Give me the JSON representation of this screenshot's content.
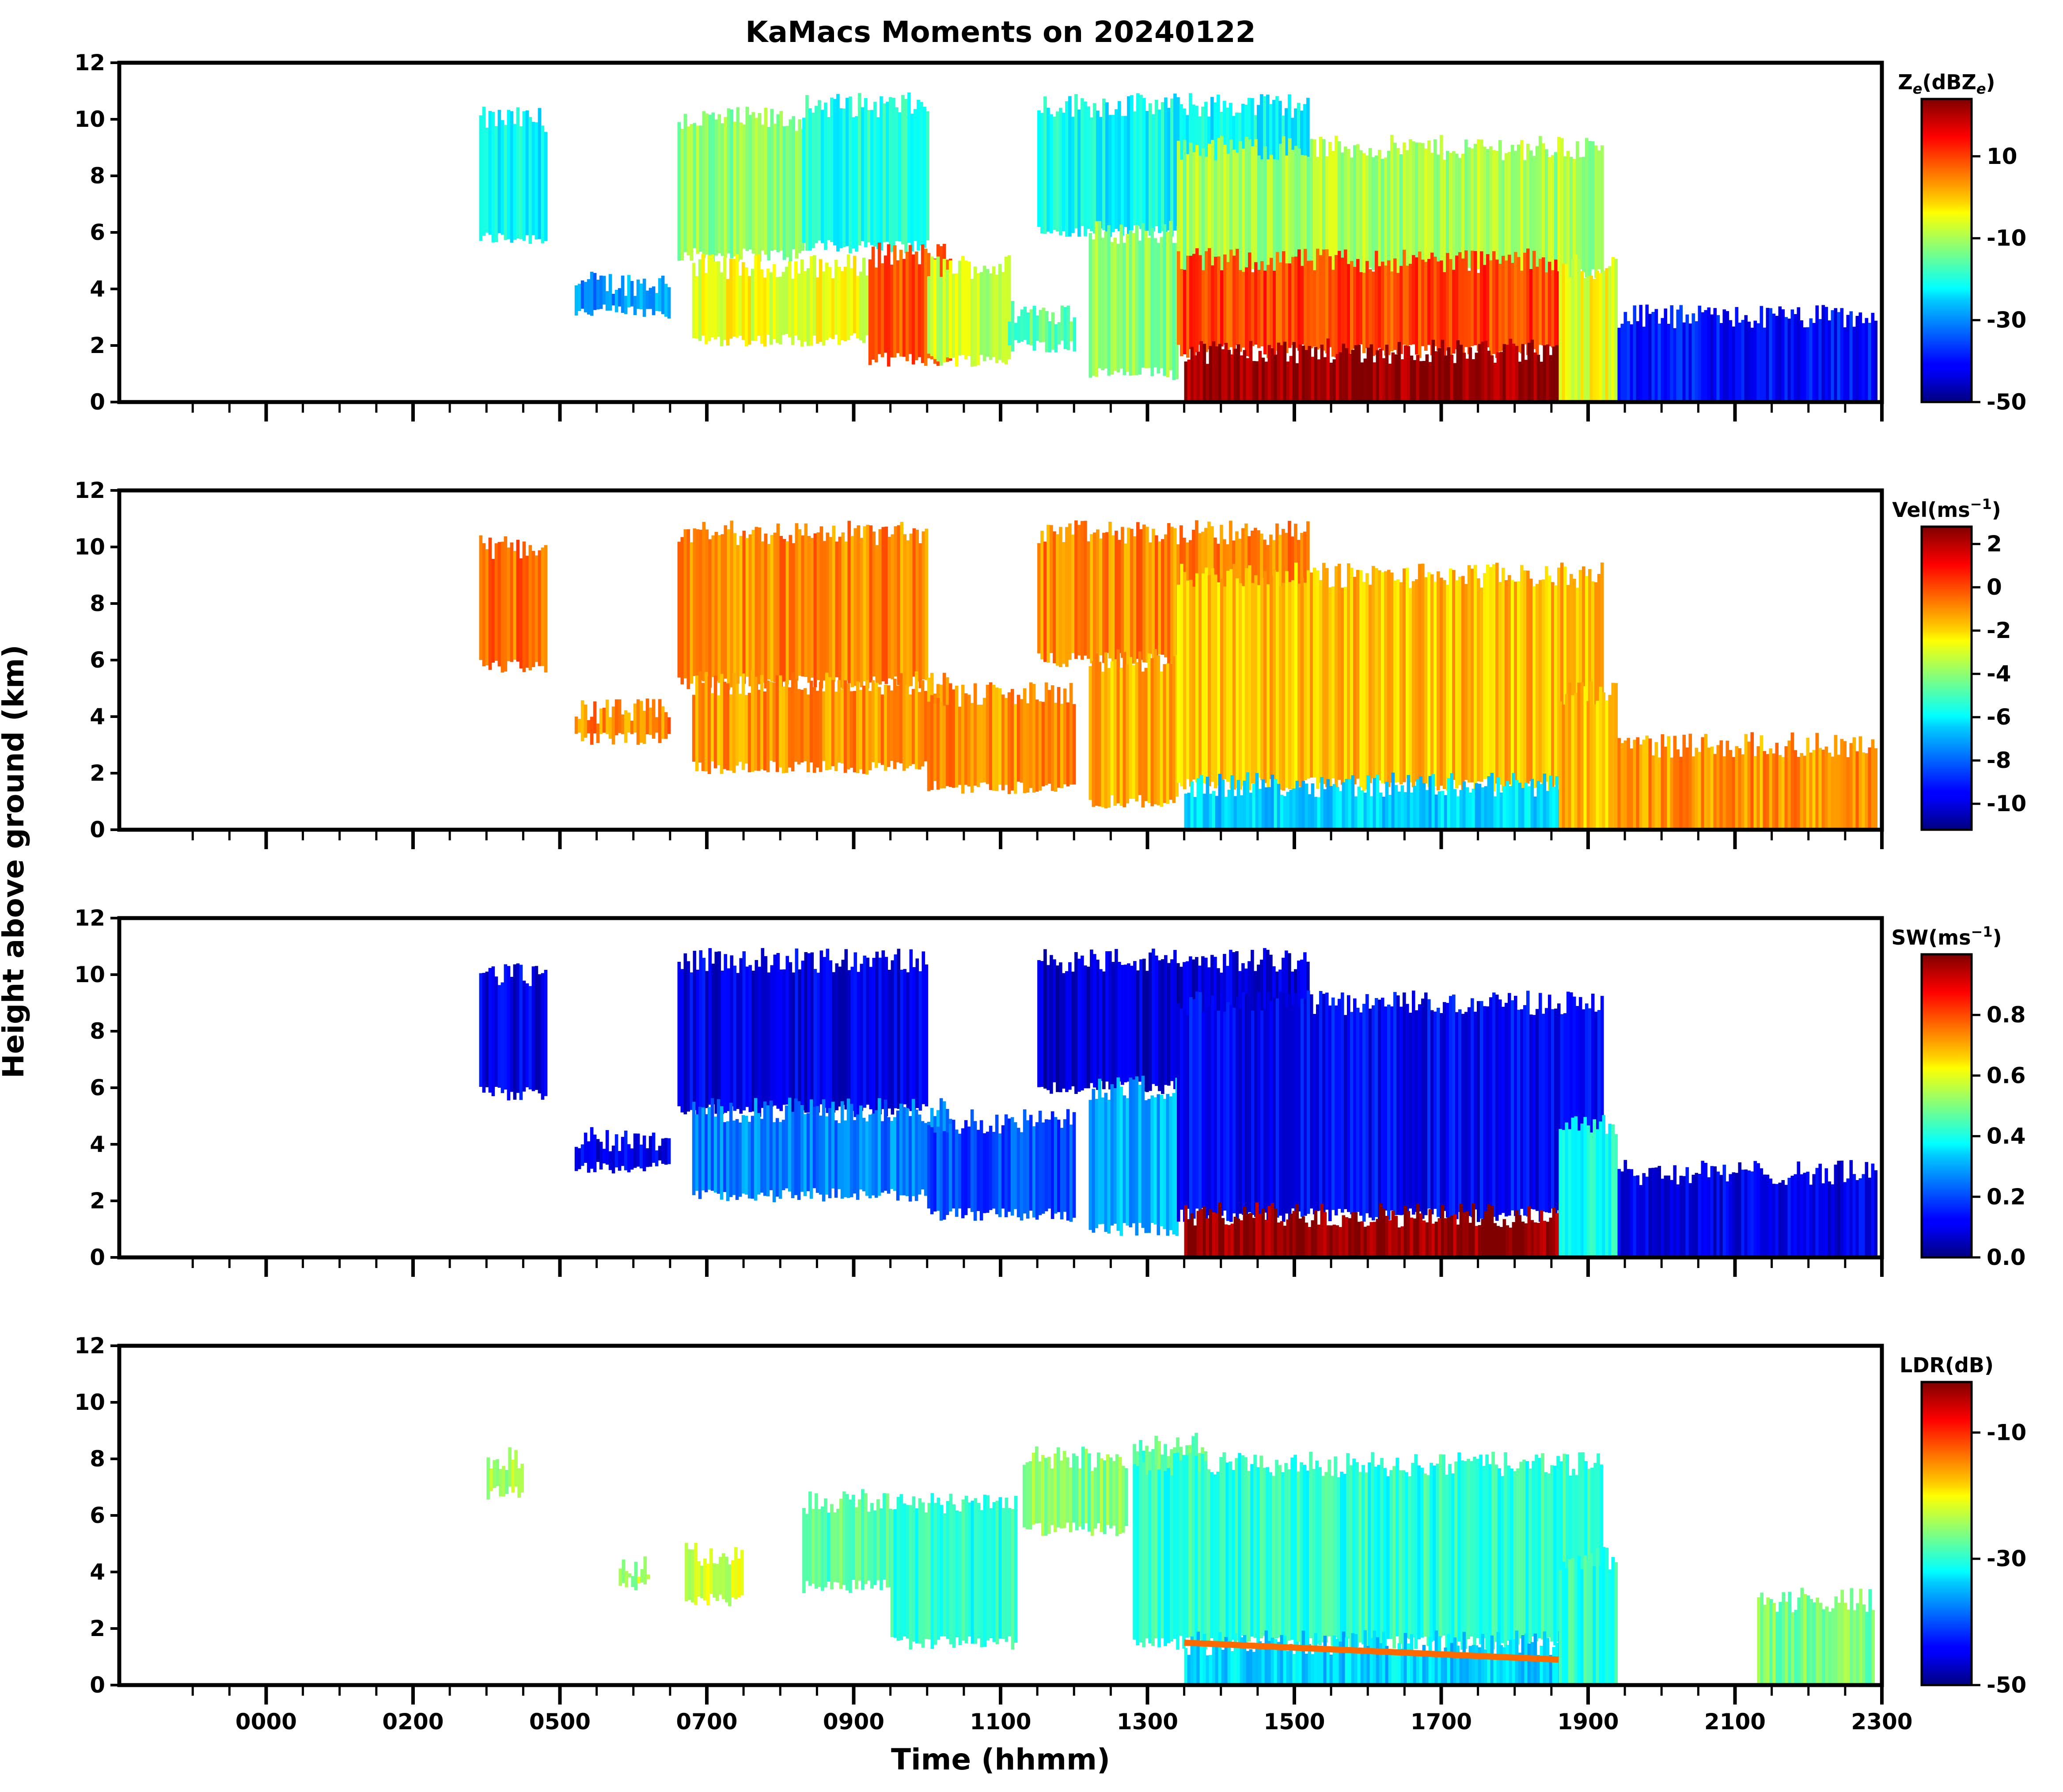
{
  "figure": {
    "title": "KaMacs Moments on 20240122",
    "ylabel": "Height above ground (km)",
    "xlabel": "Time (hhmm)"
  },
  "chart_data": {
    "type": "heatmap",
    "title": "KaMacs Moments on 20240122",
    "xlabel": "Time (hhmm)",
    "ylabel": "Height above ground (km)",
    "x_tick_labels": [
      "0000",
      "0200",
      "0500",
      "0700",
      "0900",
      "1100",
      "1300",
      "1500",
      "1700",
      "1900",
      "2100",
      "2300"
    ],
    "x_ticks_major": [
      1,
      3,
      5,
      7,
      9,
      11,
      13,
      15,
      17,
      19,
      21,
      23
    ],
    "x_ticks_minor": [
      0,
      0.5,
      1.5,
      2,
      2.5,
      3.5,
      4,
      4.5,
      5.5,
      6,
      6.5,
      7.5,
      8,
      8.5,
      9.5,
      10,
      10.5,
      11.5,
      12,
      12.5,
      13.5,
      14,
      14.5,
      15.5,
      16,
      16.5,
      17.5,
      18,
      18.5,
      19.5,
      20,
      20.5,
      21.5,
      22,
      22.5
    ],
    "xlim": [
      -1,
      23
    ],
    "ylim": [
      0,
      12
    ],
    "y_ticks": [
      0,
      2,
      4,
      6,
      8,
      10,
      12
    ],
    "y_tick_labels": [
      "0",
      "2",
      "4",
      "6",
      "8",
      "10",
      "12"
    ],
    "panels": [
      {
        "id": "ze",
        "colorbar_label": "Ze(dBZe)",
        "colorbar_label_base": "Z",
        "colorbar_label_sub": "e",
        "colorbar_label_mid": "(dBZ",
        "colorbar_label_end": ")",
        "colormap": "jet",
        "vmin": -50,
        "vmax": 24,
        "colorbar_ticks": [
          10,
          -10,
          -30,
          -50
        ],
        "colorbar_tick_labels": [
          "10",
          "-10",
          "-30",
          "-50"
        ],
        "cloud_regions": [
          {
            "t0": 3.9,
            "t1": 4.8,
            "h0": 5.8,
            "h1": 10,
            "value": -22
          },
          {
            "t0": 5.2,
            "t1": 6.5,
            "h0": 3.2,
            "h1": 4.2,
            "value": -30
          },
          {
            "t0": 6.6,
            "t1": 8.3,
            "h0": 5.2,
            "h1": 10,
            "value": -12
          },
          {
            "t0": 6.8,
            "t1": 9.2,
            "h0": 2.2,
            "h1": 4.8,
            "value": -5
          },
          {
            "t0": 8.3,
            "t1": 10.0,
            "h0": 5.5,
            "h1": 10.5,
            "value": -20
          },
          {
            "t0": 9.2,
            "t1": 10.3,
            "h0": 1.5,
            "h1": 5.2,
            "value": 8
          },
          {
            "t0": 10.0,
            "t1": 11.1,
            "h0": 1.5,
            "h1": 4.8,
            "value": -8
          },
          {
            "t0": 11.1,
            "t1": 12.0,
            "h0": 2.0,
            "h1": 3.2,
            "value": -15
          },
          {
            "t0": 11.5,
            "t1": 15.2,
            "h0": 6.0,
            "h1": 10.5,
            "value": -22
          },
          {
            "t0": 12.2,
            "t1": 13.4,
            "h0": 1.0,
            "h1": 6.0,
            "value": -12
          },
          {
            "t0": 13.4,
            "t1": 19.2,
            "h0": 4.5,
            "h1": 9.0,
            "value": -10
          },
          {
            "t0": 13.4,
            "t1": 18.6,
            "h0": 1.8,
            "h1": 5.0,
            "value": 10
          },
          {
            "t0": 13.5,
            "t1": 18.6,
            "h0": 0.0,
            "h1": 1.8,
            "value": 22
          },
          {
            "t0": 18.6,
            "t1": 19.4,
            "h0": 0.0,
            "h1": 4.8,
            "value": -5
          },
          {
            "t0": 19.4,
            "t1": 22.9,
            "h0": 0.0,
            "h1": 3.0,
            "value": -40
          }
        ]
      },
      {
        "id": "vel",
        "colorbar_label": "Vel(ms-1)",
        "colorbar_label_base": "Vel(ms",
        "colorbar_label_sup": "−1",
        "colorbar_label_end": ")",
        "colormap": "jet",
        "vmin": -11.2,
        "vmax": 2.8,
        "colorbar_ticks": [
          2,
          0,
          -2,
          -4,
          -6,
          -8,
          -10
        ],
        "colorbar_tick_labels": [
          "2",
          "0",
          "-2",
          "-4",
          "-6",
          "-8",
          "-10"
        ],
        "cloud_regions": [
          {
            "t0": 3.9,
            "t1": 4.8,
            "h0": 5.8,
            "h1": 10,
            "value": -0.5
          },
          {
            "t0": 5.2,
            "t1": 6.5,
            "h0": 3.2,
            "h1": 4.2,
            "value": -0.8
          },
          {
            "t0": 6.6,
            "t1": 10.0,
            "h0": 5.2,
            "h1": 10.5,
            "value": -0.8
          },
          {
            "t0": 6.8,
            "t1": 10.3,
            "h0": 2.2,
            "h1": 5.2,
            "value": -1.0
          },
          {
            "t0": 10.0,
            "t1": 12.0,
            "h0": 1.5,
            "h1": 4.8,
            "value": -1.0
          },
          {
            "t0": 11.5,
            "t1": 15.2,
            "h0": 6.0,
            "h1": 10.5,
            "value": -0.8
          },
          {
            "t0": 12.2,
            "t1": 13.4,
            "h0": 1.0,
            "h1": 6.0,
            "value": -1.4
          },
          {
            "t0": 13.4,
            "t1": 19.2,
            "h0": 1.6,
            "h1": 9.0,
            "value": -1.6
          },
          {
            "t0": 13.5,
            "t1": 18.6,
            "h0": 0.0,
            "h1": 1.6,
            "value": -6.5
          },
          {
            "t0": 18.6,
            "t1": 19.4,
            "h0": 0.0,
            "h1": 4.8,
            "value": -1.6
          },
          {
            "t0": 19.4,
            "t1": 22.9,
            "h0": 0.0,
            "h1": 3.0,
            "value": -1.0
          }
        ]
      },
      {
        "id": "sw",
        "colorbar_label": "SW(ms-1)",
        "colorbar_label_base": "SW(ms",
        "colorbar_label_sup": "−1",
        "colorbar_label_end": ")",
        "colormap": "jet",
        "vmin": 0.0,
        "vmax": 1.0,
        "colorbar_ticks": [
          0.8,
          0.6,
          0.4,
          0.2,
          0.0
        ],
        "colorbar_tick_labels": [
          "0.8",
          "0.6",
          "0.4",
          "0.2",
          "0.0"
        ],
        "cloud_regions": [
          {
            "t0": 3.9,
            "t1": 4.8,
            "h0": 5.8,
            "h1": 10,
            "value": 0.1
          },
          {
            "t0": 5.2,
            "t1": 6.5,
            "h0": 3.2,
            "h1": 4.2,
            "value": 0.1
          },
          {
            "t0": 6.6,
            "t1": 10.0,
            "h0": 5.2,
            "h1": 10.5,
            "value": 0.1
          },
          {
            "t0": 6.8,
            "t1": 10.3,
            "h0": 2.2,
            "h1": 5.2,
            "value": 0.25
          },
          {
            "t0": 10.0,
            "t1": 12.0,
            "h0": 1.5,
            "h1": 4.8,
            "value": 0.2
          },
          {
            "t0": 11.5,
            "t1": 15.2,
            "h0": 6.0,
            "h1": 10.5,
            "value": 0.08
          },
          {
            "t0": 12.2,
            "t1": 13.4,
            "h0": 1.0,
            "h1": 6.0,
            "value": 0.3
          },
          {
            "t0": 13.4,
            "t1": 19.2,
            "h0": 1.5,
            "h1": 9.0,
            "value": 0.12
          },
          {
            "t0": 13.5,
            "t1": 18.6,
            "h0": 0.0,
            "h1": 1.5,
            "value": 0.98
          },
          {
            "t0": 18.6,
            "t1": 19.4,
            "h0": 0.0,
            "h1": 4.8,
            "value": 0.4
          },
          {
            "t0": 19.4,
            "t1": 22.9,
            "h0": 0.0,
            "h1": 3.0,
            "value": 0.1
          }
        ]
      },
      {
        "id": "ldr",
        "colorbar_label": "LDR(dB)",
        "colorbar_label_base": "LDR(dB)",
        "colormap": "jet",
        "vmin": -50,
        "vmax": -2,
        "colorbar_ticks": [
          -10,
          -30,
          -50
        ],
        "colorbar_tick_labels": [
          "-10",
          "-30",
          "-50"
        ],
        "cloud_regions": [
          {
            "t0": 4.0,
            "t1": 4.5,
            "h0": 6.8,
            "h1": 8.0,
            "value": -24
          },
          {
            "t0": 5.8,
            "t1": 6.2,
            "h0": 3.6,
            "h1": 4.2,
            "value": -24
          },
          {
            "t0": 6.7,
            "t1": 7.5,
            "h0": 3.0,
            "h1": 4.6,
            "value": -22
          },
          {
            "t0": 8.3,
            "t1": 9.5,
            "h0": 3.5,
            "h1": 6.5,
            "value": -28
          },
          {
            "t0": 9.5,
            "t1": 11.2,
            "h0": 1.5,
            "h1": 6.5,
            "value": -30
          },
          {
            "t0": 11.3,
            "t1": 12.7,
            "h0": 5.5,
            "h1": 8.0,
            "value": -26
          },
          {
            "t0": 12.8,
            "t1": 13.8,
            "h0": 5.5,
            "h1": 8.5,
            "value": -28
          },
          {
            "t0": 12.8,
            "t1": 19.2,
            "h0": 1.5,
            "h1": 7.8,
            "value": -30
          },
          {
            "t0": 13.5,
            "t1": 18.6,
            "h0": 0.0,
            "h1": 1.5,
            "value": -34
          },
          {
            "t0": 18.6,
            "t1": 19.4,
            "h0": 0.0,
            "h1": 4.5,
            "value": -30
          },
          {
            "t0": 21.3,
            "t1": 22.9,
            "h0": 0.0,
            "h1": 3.0,
            "value": -26
          }
        ],
        "bands": [
          {
            "t0": 13.5,
            "t1": 18.6,
            "h_start": 1.5,
            "h_end": 0.9,
            "value": -13
          }
        ]
      }
    ]
  }
}
